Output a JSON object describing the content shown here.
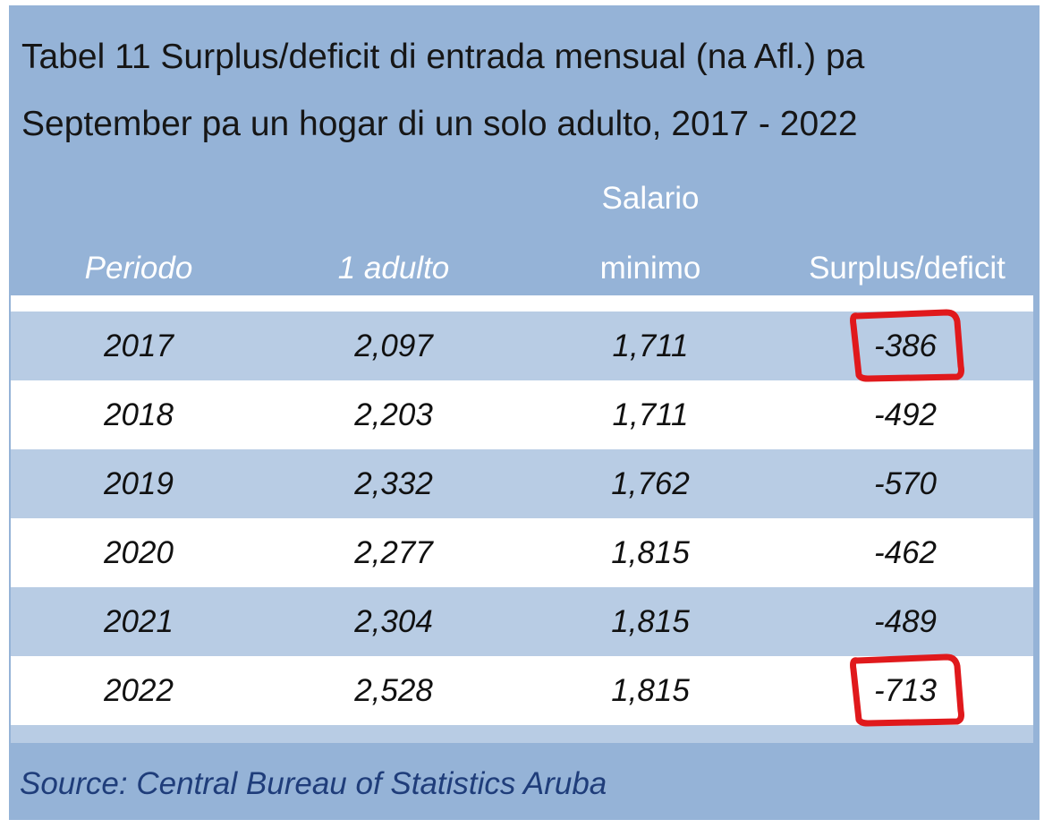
{
  "title_line1": "Tabel 11 Surplus/deficit di entrada mensual (na Afl.) pa",
  "title_line2": "September pa un hogar di un solo adulto, 2017 - 2022",
  "headers": {
    "periodo": "Periodo",
    "adulto": "1 adulto",
    "salario_line1": "Salario",
    "salario_line2": "minimo",
    "surplus": "Surplus/deficit"
  },
  "source": "Source: Central Bureau of Statistics Aruba",
  "colors": {
    "header_bg": "#95b3d7",
    "band_row": "#b8cce4",
    "white_row": "#ffffff",
    "highlight": "#e0191c",
    "source_text": "#1f3d7a"
  },
  "chart_data": {
    "type": "table",
    "title": "Tabel 11 Surplus/deficit di entrada mensual (na Afl.) pa September pa un hogar di un solo adulto, 2017 - 2022",
    "columns": [
      "Periodo",
      "1 adulto",
      "Salario minimo",
      "Surplus/deficit"
    ],
    "rows": [
      [
        "2017",
        "2,097",
        "1,711",
        "-386"
      ],
      [
        "2018",
        "2,203",
        "1,711",
        "-492"
      ],
      [
        "2019",
        "2,332",
        "1,762",
        "-570"
      ],
      [
        "2020",
        "2,277",
        "1,815",
        "-462"
      ],
      [
        "2021",
        "2,304",
        "1,815",
        "-489"
      ],
      [
        "2022",
        "2,528",
        "1,815",
        "-713"
      ]
    ],
    "highlighted_cells": [
      {
        "row": 0,
        "col": 3
      },
      {
        "row": 5,
        "col": 3
      }
    ]
  }
}
